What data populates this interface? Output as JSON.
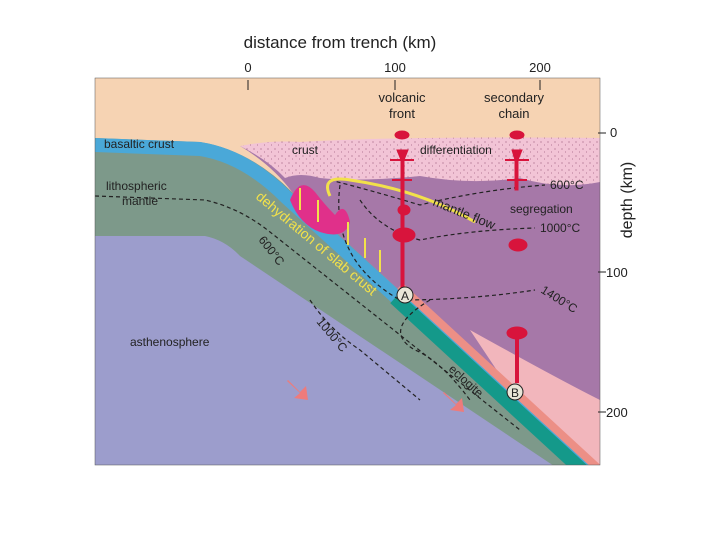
{
  "title": "distance from trench (km)",
  "distance_ticks": [
    "0",
    "100",
    "200"
  ],
  "volcanic_front": [
    "volcanic",
    "front"
  ],
  "secondary_chain": [
    "secondary",
    "chain"
  ],
  "depth_axis": {
    "title": "depth (km)",
    "ticks": [
      "0",
      "100",
      "200"
    ]
  },
  "labels": {
    "basaltic_crust": "basaltic crust",
    "crust": "crust",
    "differentiation": "differentiation",
    "lithospheric_mantle": [
      "lithospheric",
      "mantle"
    ],
    "isotherm_600_wedge": "600°C",
    "segregation": "segregation",
    "isotherm_1000_wedge": "1000°C",
    "mantle_flow": "mantle flow",
    "dehydration": "dehydration of slab crust",
    "isotherm_600_slab": "600°C",
    "isotherm_1400": "1400°C",
    "isotherm_1000_slab": "1000°C",
    "asthenosphere": "asthenosphere",
    "eclogite": "eclogite",
    "point_a": "A",
    "point_b": "B"
  }
}
